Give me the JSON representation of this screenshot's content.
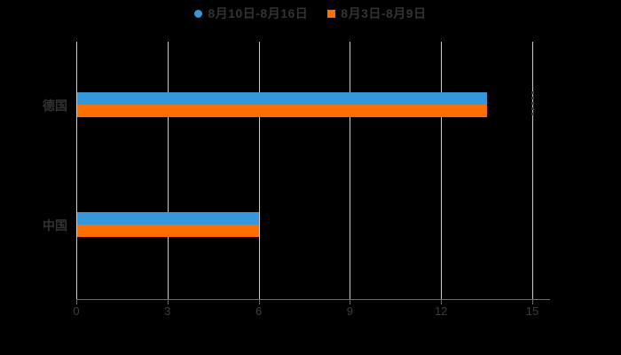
{
  "background_color": "#000000",
  "legend": {
    "items": [
      {
        "label": "8月10日-8月16日",
        "color": "#3498db",
        "marker": "circle"
      },
      {
        "label": "8月3日-8月9日",
        "color": "#ff6f00",
        "marker": "square"
      }
    ]
  },
  "chart_data": {
    "type": "bar",
    "orientation": "horizontal",
    "title": "",
    "xlabel": "",
    "ylabel": "",
    "categories": [
      "德国",
      "中国"
    ],
    "series": [
      {
        "name": "8月10日-8月16日",
        "color": "#3498db",
        "values": [
          13.5,
          6
        ]
      },
      {
        "name": "8月3日-8月9日",
        "color": "#ff6f00",
        "values": [
          13.5,
          6
        ]
      }
    ],
    "x_ticks": [
      0,
      3,
      6,
      9,
      12,
      15
    ],
    "x_tick_labels": [
      "0",
      "3",
      "6",
      "9",
      "12",
      "15"
    ],
    "xlim": [
      0,
      15.6
    ],
    "grid": "vertical",
    "legend_position": "top-center",
    "colors": {
      "grid_line": "#cccccc",
      "axis_line": "#6e6e6e",
      "tick_text": "#3d3d3d",
      "category_text": "#333333",
      "annotation_dash": "#3a3a3a"
    },
    "annotations": [
      {
        "type": "dashed-vline",
        "x": 15,
        "category_index": 0
      }
    ]
  }
}
